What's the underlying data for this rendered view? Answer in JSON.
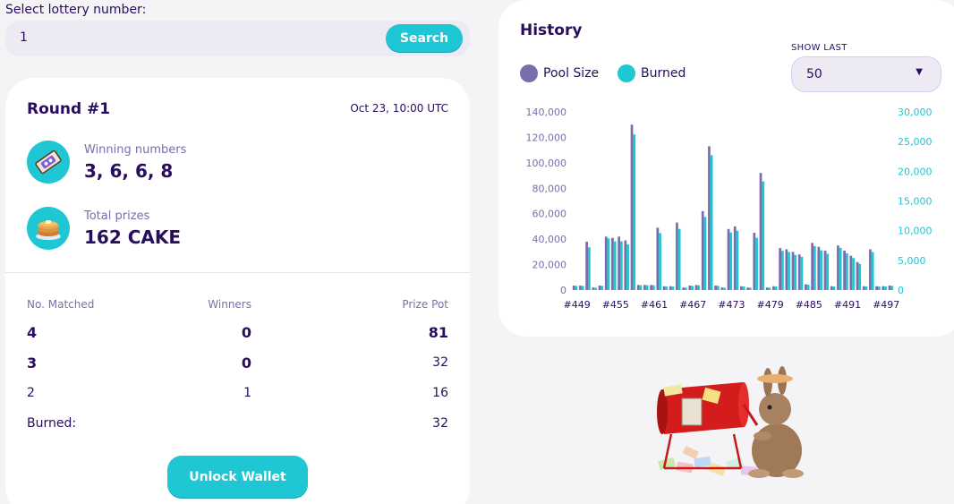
{
  "search": {
    "label": "Select lottery number:",
    "value": "1",
    "button_label": "Search"
  },
  "round": {
    "title": "Round #1",
    "date": "Oct 23, 10:00 UTC",
    "winning_numbers_label": "Winning numbers",
    "winning_numbers": "3, 6, 6, 8",
    "total_prizes_label": "Total prizes",
    "total_prizes": "162 CAKE",
    "table": {
      "headers": [
        "No. Matched",
        "Winners",
        "Prize Pot"
      ],
      "rows": [
        {
          "matched": "4",
          "winners": "0",
          "pot": "81"
        },
        {
          "matched": "3",
          "winners": "0",
          "pot": "32"
        },
        {
          "matched": "2",
          "winners": "1",
          "pot": "16"
        }
      ],
      "burned_label": "Burned:",
      "burned_value": "32"
    },
    "unlock_label": "Unlock Wallet"
  },
  "history": {
    "title": "History",
    "legend": {
      "pool": "Pool Size",
      "burned": "Burned"
    },
    "show_last_label": "SHOW LAST",
    "show_last_value": "50",
    "colors": {
      "pool": "#7a6eaa",
      "burned": "#1fc7d4"
    }
  },
  "chart_data": {
    "type": "bar",
    "x_tick_labels": [
      "#449",
      "#455",
      "#461",
      "#467",
      "#473",
      "#479",
      "#485",
      "#491",
      "#497"
    ],
    "y_left_ticks": [
      "0",
      "20,000",
      "40,000",
      "60,000",
      "80,000",
      "100,000",
      "120,000",
      "140,000"
    ],
    "y_right_ticks": [
      "0",
      "5,000",
      "10,000",
      "15,000",
      "20,000",
      "25,000",
      "30,000"
    ],
    "ylim_left": [
      0,
      140000
    ],
    "ylim_right": [
      0,
      30000
    ],
    "series": [
      {
        "name": "Pool Size",
        "values": [
          3500,
          3500,
          38000,
          2000,
          3500,
          42000,
          41000,
          42000,
          39000,
          130000,
          4000,
          4000,
          4000,
          49000,
          3000,
          3000,
          53000,
          2000,
          3500,
          4000,
          62000,
          113000,
          3500,
          2000,
          48000,
          50000,
          3000,
          2000,
          45000,
          92000,
          2000,
          3000,
          33000,
          32000,
          30000,
          28000,
          4500,
          37000,
          34000,
          31000,
          3000,
          35000,
          31000,
          27000,
          22000,
          3000,
          32000,
          3000,
          3000,
          3500
        ]
      },
      {
        "name": "Burned",
        "values": [
          700,
          700,
          7200,
          400,
          700,
          8700,
          8200,
          8200,
          7700,
          26200,
          800,
          800,
          800,
          9600,
          600,
          600,
          10300,
          400,
          700,
          800,
          12300,
          22700,
          700,
          400,
          9700,
          10000,
          600,
          400,
          8800,
          18300,
          400,
          600,
          6600,
          6400,
          5900,
          5600,
          900,
          7400,
          6700,
          6100,
          600,
          7100,
          6200,
          5400,
          4400,
          600,
          6400,
          600,
          600,
          700
        ]
      }
    ]
  }
}
